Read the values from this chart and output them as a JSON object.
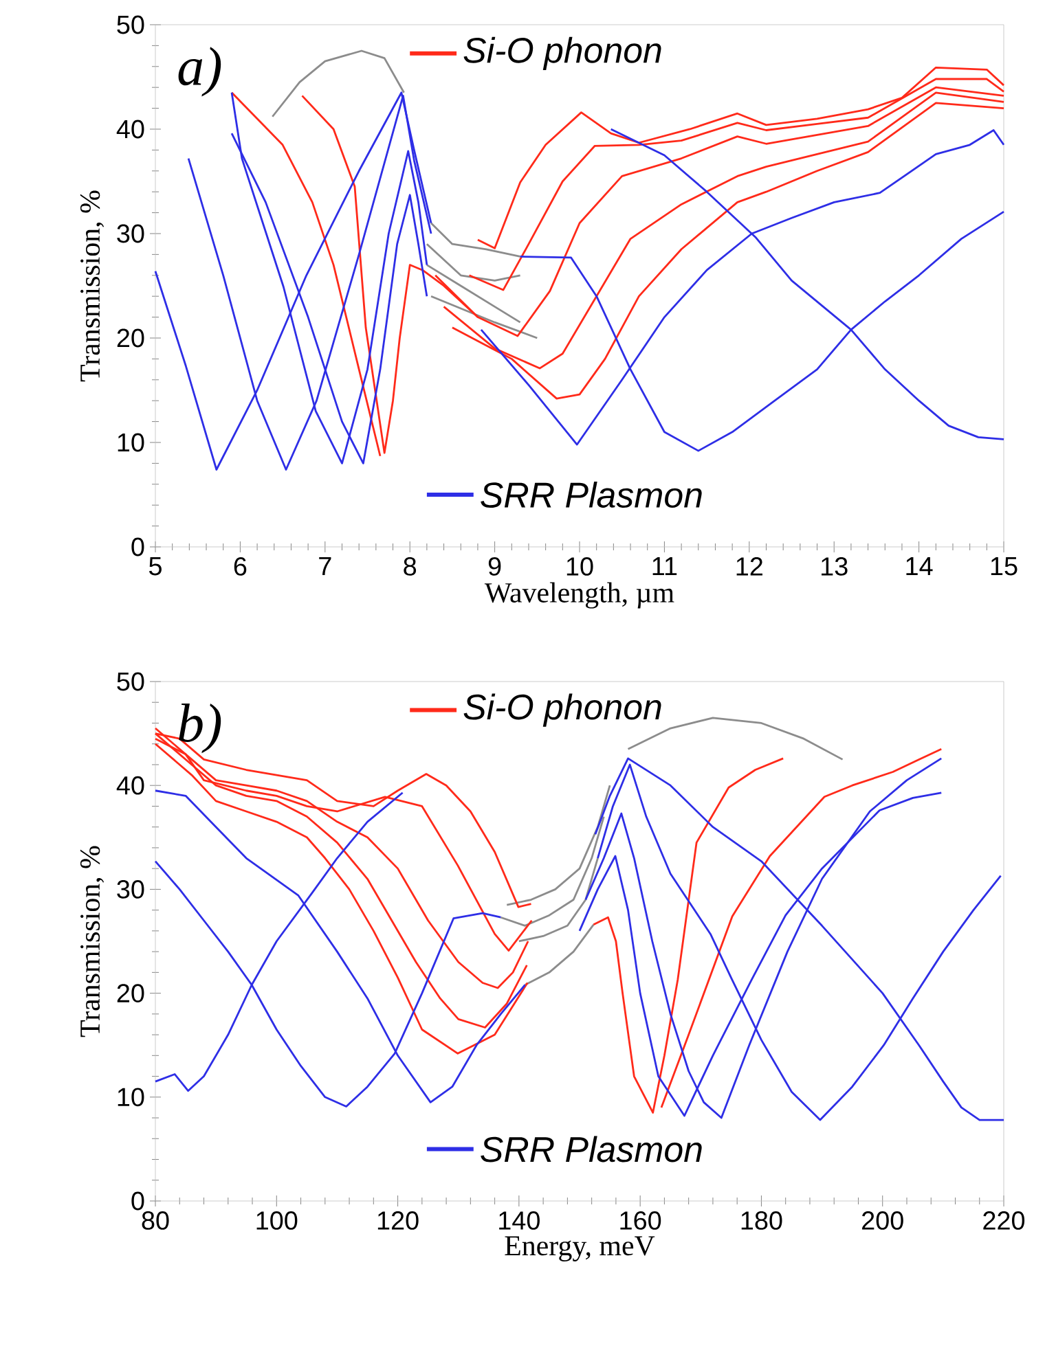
{
  "chart_data": [
    {
      "type": "line",
      "xlabel": "Wavelength, µm",
      "ylabel": "Transmission, %",
      "xlim": [
        5,
        15
      ],
      "ylim": [
        0,
        50
      ],
      "xticks": [
        5,
        6,
        7,
        8,
        9,
        10,
        11,
        12,
        13,
        14,
        15
      ],
      "yticks": [
        0,
        10,
        20,
        30,
        40,
        50
      ],
      "annotations": [
        "a)"
      ],
      "legend": "top",
      "series": [
        {
          "color": "#8c8c8c",
          "x": [
            6.38,
            6.7,
            7.0,
            7.43,
            7.7,
            7.93
          ],
          "values": [
            41.2,
            44.5,
            46.5,
            47.5,
            46.8,
            43.5
          ]
        },
        {
          "color": "#8c8c8c",
          "x": [
            8.25,
            8.5,
            8.9,
            9.3
          ],
          "values": [
            31,
            29,
            28.5,
            27.8
          ]
        },
        {
          "color": "#8c8c8c",
          "x": [
            8.2,
            8.6,
            9.0,
            9.3
          ],
          "values": [
            29,
            26,
            25.5,
            26
          ]
        },
        {
          "color": "#8c8c8c",
          "x": [
            8.2,
            8.6,
            9.0,
            9.3
          ],
          "values": [
            27,
            25,
            23,
            21.5
          ]
        },
        {
          "color": "#8c8c8c",
          "x": [
            8.25,
            8.7,
            9.0,
            9.5
          ],
          "values": [
            24,
            22.5,
            21.5,
            20
          ]
        },
        {
          "name": "Si-O phonon",
          "color": "#ff2a1a",
          "x": [
            5.9,
            6.2,
            6.5,
            6.85,
            7.1,
            7.4,
            7.65
          ],
          "values": [
            43.5,
            41,
            38.5,
            33,
            27,
            17,
            8.7
          ]
        },
        {
          "color": "#ff2a1a",
          "x": [
            6.73,
            7.1,
            7.35,
            7.48,
            7.7,
            7.8,
            7.88,
            8.0,
            8.15,
            8.4,
            8.8
          ],
          "values": [
            43.2,
            40,
            34.5,
            21,
            9,
            14,
            20,
            27,
            26.5,
            25,
            22
          ]
        },
        {
          "color": "#ff2a1a",
          "x": [
            8.8,
            9.0,
            9.3,
            9.6,
            10.02,
            10.37,
            10.7,
            11.3,
            11.86,
            12.2,
            12.8,
            13.4,
            13.8,
            14.2,
            14.8,
            15
          ],
          "values": [
            29.4,
            28.6,
            34.9,
            38.5,
            41.6,
            39.6,
            38.7,
            40,
            41.5,
            40.4,
            41,
            41.9,
            43,
            45.9,
            45.7,
            44.2
          ]
        },
        {
          "color": "#ff2a1a",
          "x": [
            8.7,
            9.1,
            9.4,
            9.8,
            10.18,
            10.7,
            11.2,
            11.86,
            12.2,
            12.8,
            13.4,
            14.2,
            14.8,
            15
          ],
          "values": [
            26,
            24.6,
            29,
            35,
            38.4,
            38.5,
            38.9,
            40.6,
            39.9,
            40.5,
            41.1,
            44.8,
            44.8,
            43.6
          ]
        },
        {
          "color": "#ff2a1a",
          "x": [
            8.3,
            8.8,
            9.27,
            9.65,
            10.0,
            10.5,
            11.2,
            11.86,
            12.2,
            13.4,
            14.2,
            15
          ],
          "values": [
            26,
            22,
            20.2,
            24.5,
            31,
            35.5,
            37.2,
            39.3,
            38.6,
            40.3,
            44,
            43.2
          ]
        },
        {
          "color": "#ff2a1a",
          "x": [
            8.4,
            9.0,
            9.53,
            9.8,
            10.2,
            10.6,
            11.2,
            11.86,
            12.2,
            12.8,
            13.4,
            14.2,
            15
          ],
          "values": [
            23,
            19,
            17.1,
            18.5,
            24,
            29.5,
            32.8,
            35.5,
            36.4,
            37.6,
            38.8,
            43.5,
            42.6
          ]
        },
        {
          "color": "#ff2a1a",
          "x": [
            8.5,
            9.2,
            9.73,
            10.0,
            10.3,
            10.7,
            11.2,
            11.86,
            12.2,
            12.8,
            13.4,
            14.2,
            15
          ],
          "values": [
            21,
            18,
            14.2,
            14.6,
            18,
            24,
            28.5,
            33,
            34,
            36,
            37.8,
            42.5,
            42
          ]
        },
        {
          "name": "SRR Plasmon",
          "color": "#2e2ee6",
          "x": [
            5.0,
            5.36,
            5.72,
            6.2,
            6.78,
            7.4,
            7.9,
            8.05,
            8.25
          ],
          "values": [
            26.4,
            17.3,
            7.4,
            15,
            26,
            36,
            43.5,
            38,
            31
          ]
        },
        {
          "color": "#2e2ee6",
          "x": [
            5.39,
            5.8,
            6.2,
            6.54,
            6.9,
            7.4,
            7.92,
            8.05,
            8.25
          ],
          "values": [
            37.2,
            26,
            14,
            7.4,
            14,
            28,
            43.2,
            37,
            30
          ]
        },
        {
          "color": "#2e2ee6",
          "x": [
            5.9,
            6.02,
            6.51,
            6.89,
            7.2,
            7.5,
            7.75,
            7.98,
            8.1,
            8.2
          ],
          "values": [
            43.5,
            37.2,
            24.9,
            13,
            8,
            17,
            30,
            37.9,
            33,
            27
          ]
        },
        {
          "color": "#2e2ee6",
          "x": [
            5.9,
            6.3,
            6.8,
            7.2,
            7.45,
            7.65,
            7.85,
            8.0,
            8.1,
            8.2
          ],
          "values": [
            39.6,
            33,
            22,
            12,
            8,
            17,
            29,
            33.7,
            29,
            24
          ]
        },
        {
          "color": "#2e2ee6",
          "x": [
            8.84,
            9.4,
            9.97,
            10.5,
            11.0,
            11.5,
            12.03,
            12.5,
            13.0,
            13.54,
            14.2,
            14.6,
            14.88,
            15
          ],
          "values": [
            20.8,
            15.5,
            9.8,
            16,
            22,
            26.5,
            30,
            31.5,
            33,
            33.9,
            37.6,
            38.5,
            39.9,
            38.5
          ]
        },
        {
          "color": "#2e2ee6",
          "x": [
            9.3,
            9.9,
            10.2,
            10.6,
            11.0,
            11.4,
            11.8,
            12.3,
            12.8,
            13.2,
            13.6,
            14.0,
            14.5,
            15
          ],
          "values": [
            27.8,
            27.7,
            24,
            17,
            11,
            9.2,
            11,
            14,
            17,
            20.8,
            23.5,
            26,
            29.5,
            32.1
          ]
        },
        {
          "color": "#2e2ee6",
          "x": [
            10.37,
            11.0,
            11.5,
            12.08,
            12.5,
            13.2,
            13.6,
            14.0,
            14.35,
            14.7,
            15
          ],
          "values": [
            40,
            37.5,
            34,
            29.6,
            25.5,
            20.8,
            17,
            14,
            11.6,
            10.5,
            10.3
          ]
        }
      ]
    },
    {
      "type": "line",
      "xlabel": "Energy, meV",
      "ylabel": "Transmission, %",
      "xlim": [
        80,
        220
      ],
      "ylim": [
        0,
        50
      ],
      "xticks": [
        80,
        100,
        120,
        140,
        160,
        180,
        200,
        220
      ],
      "yticks": [
        0,
        10,
        20,
        30,
        40,
        50
      ],
      "annotations": [
        "b)"
      ],
      "legend": "top",
      "series": [
        {
          "color": "#8c8c8c",
          "x": [
            158,
            165,
            172,
            180,
            187,
            193.4
          ],
          "values": [
            43.5,
            45.5,
            46.5,
            46,
            44.5,
            42.5
          ]
        },
        {
          "color": "#8c8c8c",
          "x": [
            138,
            142,
            146,
            150,
            153,
            155
          ],
          "values": [
            28.5,
            29,
            30,
            32,
            36,
            40
          ]
        },
        {
          "color": "#8c8c8c",
          "x": [
            137,
            141,
            145,
            149,
            152,
            154
          ],
          "values": [
            27.3,
            26.5,
            27.5,
            29,
            33,
            37
          ]
        },
        {
          "color": "#8c8c8c",
          "x": [
            140,
            144,
            148,
            151,
            153
          ],
          "values": [
            25,
            25.5,
            26.5,
            29,
            33
          ]
        },
        {
          "color": "#8c8c8c",
          "x": [
            141,
            145,
            149,
            152.3
          ],
          "values": [
            20.8,
            22,
            24,
            26.6
          ]
        },
        {
          "name": "Si-O phonon",
          "color": "#ff2a1a",
          "x": [
            163.5,
            168,
            175.2,
            181.4,
            190.4,
            195,
            201.7,
            206,
            209.7
          ],
          "values": [
            9,
            16,
            27.4,
            33.2,
            38.9,
            40,
            41.3,
            42.5,
            43.5
          ]
        },
        {
          "color": "#ff2a1a",
          "x": [
            152.3,
            154.7,
            156,
            157.1,
            159,
            162.1,
            164,
            166.2,
            169.3,
            174.6,
            179,
            183.6
          ],
          "values": [
            26.6,
            27.3,
            25,
            20,
            12,
            8.5,
            14,
            21.3,
            34.5,
            39.8,
            41.5,
            42.6
          ]
        },
        {
          "color": "#ff2a1a",
          "x": [
            80,
            84,
            88,
            95,
            100,
            105,
            110,
            116,
            120,
            124.7,
            128,
            132,
            136,
            139.9,
            142
          ],
          "values": [
            45,
            44.5,
            42.5,
            41.5,
            41,
            40.5,
            38.5,
            38,
            39.5,
            41.1,
            40,
            37.5,
            33.6,
            28.3,
            28.6
          ]
        },
        {
          "color": "#ff2a1a",
          "x": [
            80,
            85,
            88,
            95,
            100,
            105,
            110,
            117.9,
            124,
            129.9,
            136,
            138.3,
            142.1
          ],
          "values": [
            44.5,
            43,
            40.5,
            39.5,
            39,
            38,
            37.5,
            38.9,
            38,
            32.3,
            25.7,
            24.1,
            27
          ]
        },
        {
          "color": "#ff2a1a",
          "x": [
            80,
            86,
            90,
            95,
            100,
            105,
            110,
            115,
            120,
            125,
            130,
            134,
            136.5,
            139,
            141.5
          ],
          "values": [
            45.5,
            42.5,
            40.5,
            40,
            39.5,
            38.5,
            36.5,
            35,
            32,
            27,
            23,
            21,
            20.5,
            22,
            25
          ]
        },
        {
          "color": "#ff2a1a",
          "x": [
            80,
            86,
            90,
            95,
            100,
            105,
            110,
            115,
            119,
            123,
            127,
            130,
            134.4,
            138,
            141.3
          ],
          "values": [
            45,
            42,
            40,
            39,
            38.5,
            37,
            34.5,
            31,
            27,
            23,
            19.5,
            17.5,
            16.7,
            19,
            22.7
          ]
        },
        {
          "color": "#ff2a1a",
          "x": [
            80,
            86,
            90,
            95,
            100,
            105,
            108,
            112,
            116,
            120,
            124,
            129.9,
            136,
            141.4
          ],
          "values": [
            44,
            41,
            38.5,
            37.5,
            36.5,
            35,
            33,
            30,
            26,
            21.5,
            16.5,
            14.2,
            16,
            21
          ]
        },
        {
          "name": "SRR Plasmon",
          "color": "#2e2ee6",
          "x": [
            152.6,
            155,
            158,
            165,
            172,
            180,
            190,
            200,
            206,
            210,
            213,
            216,
            220
          ],
          "values": [
            35.3,
            39,
            42.6,
            40,
            36,
            32.7,
            26.5,
            20,
            15,
            11.5,
            9,
            7.8,
            7.8
          ]
        },
        {
          "color": "#2e2ee6",
          "x": [
            153,
            155.5,
            158.3,
            161,
            165,
            171.6,
            175,
            180,
            185,
            189.7,
            195,
            200.2,
            205,
            210,
            215,
            219.5
          ],
          "values": [
            33,
            38,
            42,
            37,
            31.5,
            25.7,
            21.5,
            15.5,
            10.5,
            7.8,
            11,
            15,
            19.5,
            24,
            28,
            31.3
          ]
        },
        {
          "color": "#2e2ee6",
          "x": [
            151,
            154,
            156.9,
            159,
            162,
            165,
            168,
            170.5,
            173.4,
            178,
            184.3,
            190,
            197.9,
            204,
            209.7
          ],
          "values": [
            29,
            33,
            37.3,
            33,
            25,
            18,
            12.5,
            9.5,
            8,
            15,
            24,
            31,
            37.5,
            40.5,
            42.6
          ]
        },
        {
          "color": "#2e2ee6",
          "x": [
            150,
            153,
            155.9,
            158,
            160,
            163,
            167.3,
            172,
            178.4,
            184,
            190,
            199.5,
            205,
            209.7
          ],
          "values": [
            26,
            30,
            33.2,
            28,
            20,
            12,
            8.2,
            14,
            21.3,
            27.5,
            32,
            37.6,
            38.8,
            39.3
          ]
        },
        {
          "color": "#2e2ee6",
          "x": [
            80,
            85,
            90,
            95,
            103.6,
            110,
            115,
            120,
            125.4,
            129,
            133,
            137,
            141
          ],
          "values": [
            39.5,
            39,
            36,
            33,
            29.4,
            24,
            19.5,
            14,
            9.5,
            11,
            15,
            18,
            20.8
          ]
        },
        {
          "color": "#2e2ee6",
          "x": [
            80,
            84,
            88,
            92,
            95.9,
            100,
            104,
            108,
            111.5,
            115,
            119.5,
            124,
            129.2,
            134,
            137
          ],
          "values": [
            32.7,
            30,
            27,
            24,
            20.8,
            16.5,
            13,
            10,
            9.1,
            11,
            14.2,
            20,
            27.2,
            27.7,
            27.3
          ]
        },
        {
          "color": "#2e2ee6",
          "x": [
            80,
            83.2,
            85.4,
            88,
            92,
            95.9,
            100,
            105.8,
            110,
            115,
            120.8
          ],
          "values": [
            11.5,
            12.2,
            10.6,
            12,
            16,
            20.8,
            25,
            29.6,
            33,
            36.5,
            39.3
          ]
        }
      ]
    }
  ]
}
